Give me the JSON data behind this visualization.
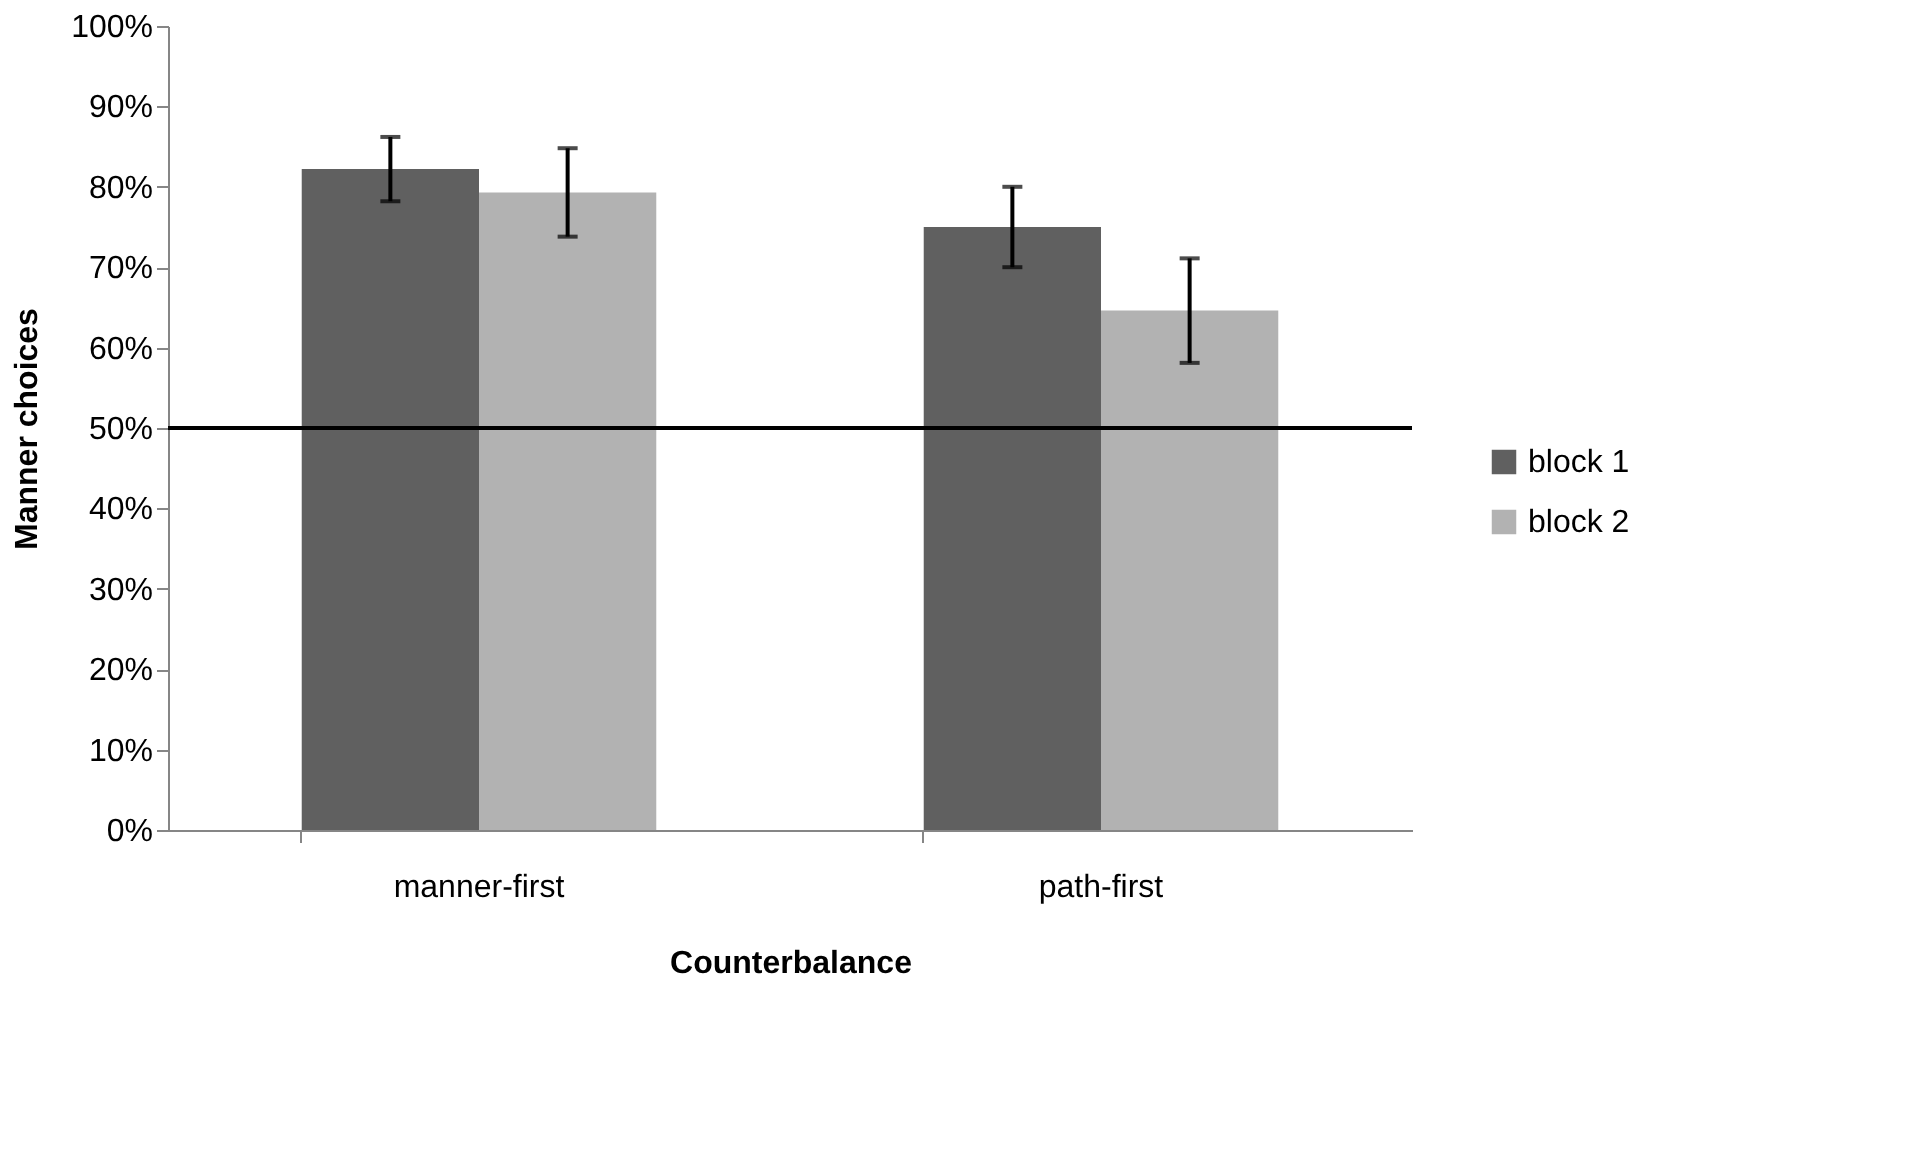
{
  "chart_data": {
    "type": "bar",
    "xlabel": "Counterbalance",
    "ylabel": "Manner choices",
    "categories": [
      "manner-first",
      "path-first"
    ],
    "series": [
      {
        "name": "block 1",
        "color": "#606060",
        "values": [
          82.2,
          75.0
        ],
        "errors": [
          4,
          5
        ]
      },
      {
        "name": "block 2",
        "color": "#b2b2b2",
        "values": [
          79.3,
          64.6
        ],
        "errors": [
          5.5,
          6.5
        ]
      }
    ],
    "ylim": [
      0,
      100
    ],
    "yticks": [
      {
        "value": 0,
        "label": "0%"
      },
      {
        "value": 10,
        "label": "10%"
      },
      {
        "value": 20,
        "label": "20%"
      },
      {
        "value": 30,
        "label": "30%"
      },
      {
        "value": 40,
        "label": "40%"
      },
      {
        "value": 50,
        "label": "50%"
      },
      {
        "value": 60,
        "label": "60%"
      },
      {
        "value": 70,
        "label": "70%"
      },
      {
        "value": 80,
        "label": "80%"
      },
      {
        "value": 90,
        "label": "90%"
      },
      {
        "value": 100,
        "label": "100%"
      }
    ],
    "ref_lines": [
      {
        "axis": "y",
        "value": 50,
        "color": "#000000"
      }
    ],
    "grid": false,
    "legend": "right"
  }
}
